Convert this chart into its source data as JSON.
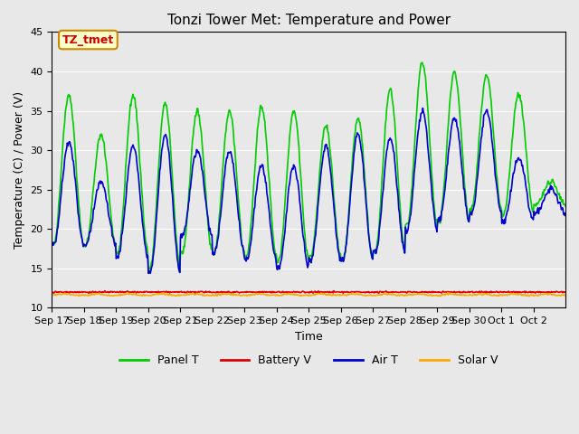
{
  "title": "Tonzi Tower Met: Temperature and Power",
  "xlabel": "Time",
  "ylabel": "Temperature (C) / Power (V)",
  "ylim": [
    10,
    45
  ],
  "yticks": [
    10,
    15,
    20,
    25,
    30,
    35,
    40,
    45
  ],
  "annotation_text": "TZ_tmet",
  "annotation_color": "#cc0000",
  "annotation_bg": "#ffffcc",
  "annotation_border": "#cc8800",
  "colors": {
    "Panel T": "#00cc00",
    "Battery V": "#dd0000",
    "Air T": "#0000cc",
    "Solar V": "#ffaa00"
  },
  "background_color": "#e8e8e8",
  "n_days": 16,
  "x_labels": [
    "Sep 17",
    "Sep 18",
    "Sep 19",
    "Sep 20",
    "Sep 21",
    "Sep 22",
    "Sep 23",
    "Sep 24",
    "Sep 25",
    "Sep 26",
    "Sep 27",
    "Sep 28",
    "Sep 29",
    "Sep 30",
    "Oct 1",
    "Oct 2"
  ],
  "night_min_p": [
    18,
    18,
    17,
    15,
    17,
    17,
    16.5,
    16,
    16.5,
    16,
    17,
    20.5,
    21,
    22.5,
    22,
    23
  ],
  "night_min_a": [
    18,
    18,
    16.5,
    14.5,
    19,
    17,
    16,
    15,
    16,
    16,
    17,
    20,
    21,
    22,
    21,
    22
  ],
  "day_max_p": [
    37,
    32,
    37,
    36,
    35,
    35,
    35.5,
    35,
    33,
    34,
    37.5,
    41,
    40,
    39.5,
    37,
    26
  ],
  "day_max_a": [
    31,
    26,
    30.5,
    32,
    30,
    30,
    28,
    28,
    30.5,
    32,
    31.5,
    35,
    34,
    35,
    29,
    25
  ],
  "battery_level": 12.0,
  "solar_level": 11.6,
  "pts_per_day": 48
}
